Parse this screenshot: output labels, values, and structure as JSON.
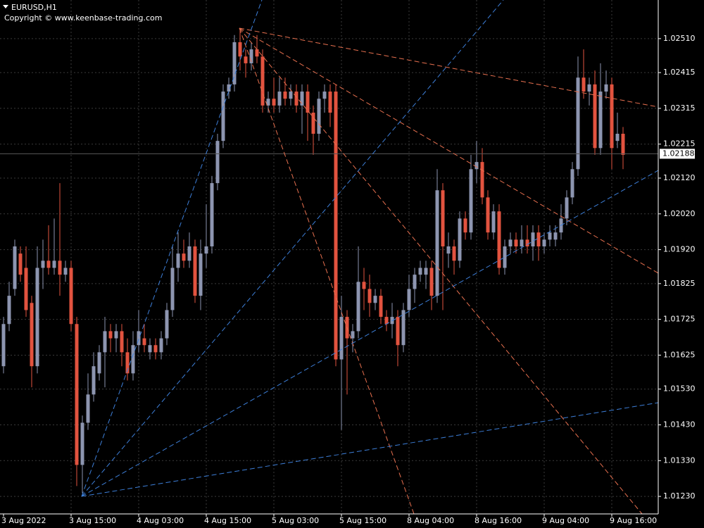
{
  "chart_data": {
    "type": "candlestick",
    "title": "EURUSD,H1",
    "subtitle": "Copyright © www.keenbase-trading.com",
    "categories": [
      "3 Aug 2022",
      null,
      null,
      null,
      null,
      null,
      null,
      null,
      null,
      null,
      null,
      null,
      "3 Aug 15:00",
      null,
      null,
      null,
      null,
      null,
      null,
      null,
      null,
      null,
      null,
      null,
      "4 Aug 03:00",
      null,
      null,
      null,
      null,
      null,
      null,
      null,
      null,
      null,
      null,
      null,
      "4 Aug 15:00",
      null,
      null,
      null,
      null,
      null,
      null,
      null,
      null,
      null,
      null,
      null,
      "5 Aug 03:00",
      null,
      null,
      null,
      null,
      null,
      null,
      null,
      null,
      null,
      null,
      null,
      "5 Aug 15:00",
      null,
      null,
      null,
      null,
      null,
      null,
      null,
      null,
      null,
      null,
      null,
      "8 Aug 04:00",
      null,
      null,
      null,
      null,
      null,
      null,
      null,
      null,
      null,
      null,
      null,
      "8 Aug 16:00",
      null,
      null,
      null,
      null,
      null,
      null,
      null,
      null,
      null,
      null,
      null,
      "9 Aug 04:00",
      null,
      null,
      null,
      null,
      null,
      null,
      null,
      null,
      null,
      null,
      null,
      "9 Aug 16:00",
      null,
      null
    ],
    "open": [
      1.01594,
      1.01712,
      1.0181,
      1.01909,
      1.01869,
      1.01771,
      1.01594,
      1.01869,
      1.01889,
      1.01869,
      1.01889,
      1.0185,
      1.01869,
      1.01712,
      1.01318,
      1.01436,
      1.01515,
      1.01574,
      1.01633,
      1.01692,
      1.01672,
      1.01692,
      1.01633,
      1.01574,
      1.01653,
      1.01672,
      1.01633,
      1.01653,
      1.01633,
      1.01672,
      1.01751,
      1.01869,
      1.01909,
      1.01889,
      1.01929,
      1.01791,
      1.01909,
      1.01929,
      1.02106,
      1.02224,
      1.02362,
      1.02382,
      1.025,
      1.0246,
      1.02441,
      1.0248,
      1.0246,
      1.02323,
      1.02342,
      1.02323,
      1.02362,
      1.02342,
      1.02362,
      1.02323,
      1.02362,
      1.02303,
      1.02244,
      1.02342,
      1.02362,
      1.02362,
      1.01613,
      1.01732,
      1.01672,
      1.01692,
      1.0183,
      1.0181,
      1.01771,
      1.01791,
      1.01732,
      1.01712,
      1.01732,
      1.01653,
      1.01751,
      1.0181,
      1.0185,
      1.0185,
      1.01869,
      1.01791,
      1.02086,
      1.01909,
      1.01929,
      1.01889,
      1.02007,
      1.01968,
      1.02145,
      1.02165,
      1.02066,
      1.01968,
      1.02027,
      1.01869,
      1.01929,
      1.01948,
      1.01929,
      1.01948,
      1.01929,
      1.01968,
      1.01929,
      1.01948,
      1.01948,
      1.01968,
      1.02007,
      1.02066,
      1.02145,
      1.02401,
      1.02362,
      1.02382,
      1.02204,
      1.02362,
      1.02382,
      1.02224,
      1.02244
    ],
    "high": [
      1.01732,
      1.0183,
      1.01948,
      1.01929,
      1.01929,
      1.01791,
      1.01929,
      1.01948,
      1.01988,
      1.02007,
      1.02106,
      1.01889,
      1.01889,
      1.01732,
      1.01456,
      1.01574,
      1.01633,
      1.01653,
      1.01732,
      1.01712,
      1.01712,
      1.01712,
      1.01672,
      1.01692,
      1.01751,
      1.01712,
      1.01672,
      1.01672,
      1.01692,
      1.01771,
      1.01929,
      1.01968,
      1.01948,
      1.01968,
      1.01948,
      1.01948,
      1.02047,
      1.02126,
      1.02244,
      1.02382,
      1.02401,
      1.0252,
      1.02539,
      1.0248,
      1.025,
      1.0252,
      1.0248,
      1.02362,
      1.02401,
      1.02401,
      1.02401,
      1.02382,
      1.02382,
      1.02382,
      1.02382,
      1.02323,
      1.02362,
      1.02382,
      1.02382,
      1.02382,
      1.01791,
      1.01751,
      1.01712,
      1.01929,
      1.01869,
      1.0185,
      1.0181,
      1.0181,
      1.01751,
      1.01771,
      1.01751,
      1.01771,
      1.0185,
      1.01869,
      1.01889,
      1.01889,
      1.01889,
      1.02145,
      1.02106,
      1.01968,
      1.01948,
      1.02027,
      1.02027,
      1.02185,
      1.02224,
      1.02204,
      1.02086,
      1.02047,
      1.02047,
      1.01948,
      1.01968,
      1.01968,
      1.01988,
      1.01988,
      1.01988,
      1.01988,
      1.01968,
      1.01988,
      1.01988,
      1.02047,
      1.02086,
      1.02165,
      1.0246,
      1.0248,
      1.02401,
      1.02421,
      1.02441,
      1.02421,
      1.02401,
      1.02303,
      1.02263
    ],
    "low": [
      1.01574,
      1.01692,
      1.01791,
      1.0183,
      1.01732,
      1.01535,
      1.01574,
      1.0181,
      1.0185,
      1.0185,
      1.01791,
      1.0183,
      1.01692,
      1.01259,
      1.01239,
      1.01416,
      1.01495,
      1.01554,
      1.01535,
      1.01633,
      1.01633,
      1.01594,
      1.01554,
      1.01554,
      1.01633,
      1.01633,
      1.01613,
      1.01613,
      1.01613,
      1.01653,
      1.01732,
      1.0183,
      1.01869,
      1.01869,
      1.01771,
      1.01751,
      1.01869,
      1.01909,
      1.02086,
      1.02204,
      1.02342,
      1.02362,
      1.02421,
      1.02401,
      1.02421,
      1.02441,
      1.02303,
      1.02303,
      1.02303,
      1.02303,
      1.02323,
      1.02323,
      1.02303,
      1.02244,
      1.02224,
      1.02185,
      1.02224,
      1.02303,
      1.02263,
      1.01594,
      1.01416,
      1.01515,
      1.01633,
      1.01672,
      1.01751,
      1.01732,
      1.01751,
      1.01712,
      1.01692,
      1.01672,
      1.01594,
      1.01633,
      1.01732,
      1.01771,
      1.0183,
      1.0181,
      1.01751,
      1.01771,
      1.01751,
      1.01869,
      1.0185,
      1.01869,
      1.01948,
      1.01948,
      1.02106,
      1.02047,
      1.01948,
      1.01948,
      1.0185,
      1.0185,
      1.01909,
      1.01909,
      1.01909,
      1.01909,
      1.01889,
      1.01889,
      1.01909,
      1.01929,
      1.01929,
      1.01948,
      1.01988,
      1.02047,
      1.02126,
      1.02342,
      1.02323,
      1.02185,
      1.02185,
      1.02342,
      1.02145,
      1.02204,
      1.02145
    ],
    "close": [
      1.01712,
      1.01791,
      1.01929,
      1.0185,
      1.01751,
      1.01594,
      1.01869,
      1.01889,
      1.01869,
      1.01889,
      1.0185,
      1.01869,
      1.01712,
      1.01318,
      1.01436,
      1.01515,
      1.01594,
      1.01633,
      1.01692,
      1.01672,
      1.01692,
      1.01633,
      1.01574,
      1.01653,
      1.01692,
      1.01653,
      1.01653,
      1.01633,
      1.01672,
      1.01751,
      1.01869,
      1.01909,
      1.01889,
      1.01929,
      1.01791,
      1.01909,
      1.01929,
      1.02106,
      1.02224,
      1.02362,
      1.02382,
      1.025,
      1.0246,
      1.02441,
      1.0248,
      1.0246,
      1.02323,
      1.02342,
      1.02323,
      1.02362,
      1.02342,
      1.02362,
      1.02323,
      1.02362,
      1.02303,
      1.02244,
      1.02342,
      1.02362,
      1.02303,
      1.01613,
      1.01732,
      1.01672,
      1.01692,
      1.0183,
      1.0181,
      1.01771,
      1.01791,
      1.01732,
      1.01712,
      1.01732,
      1.01653,
      1.01751,
      1.0181,
      1.0185,
      1.01869,
      1.01869,
      1.01791,
      1.02086,
      1.01929,
      1.01929,
      1.01889,
      1.02007,
      1.01968,
      1.02145,
      1.02165,
      1.02066,
      1.01968,
      1.02027,
      1.01869,
      1.01929,
      1.01948,
      1.01929,
      1.01948,
      1.01929,
      1.01968,
      1.01929,
      1.01948,
      1.01968,
      1.01968,
      1.02007,
      1.02066,
      1.02145,
      1.02401,
      1.02362,
      1.02382,
      1.02204,
      1.02362,
      1.02382,
      1.02204,
      1.02244,
      1.02185
    ],
    "up_color": "#8d95b0",
    "down_color": "#e2533f",
    "ylim": [
      1.01181,
      1.02618
    ],
    "yticks": [
      {
        "value": 1.0251,
        "label": "1.02510"
      },
      1.02415,
      1.02315,
      1.02215,
      {
        "value": 1.0212,
        "label": "1.02120"
      },
      {
        "value": 1.0202,
        "label": "1.02020"
      },
      {
        "value": 1.0192,
        "label": "1.01920"
      },
      1.01825,
      1.01725,
      1.01625,
      {
        "value": 1.0153,
        "label": "1.01530"
      },
      {
        "value": 1.0143,
        "label": "1.01430"
      },
      {
        "value": 1.0133,
        "label": "1.01330"
      },
      {
        "value": 1.0123,
        "label": "1.01230"
      }
    ],
    "grid": true,
    "bid": 1.02188
  }
}
